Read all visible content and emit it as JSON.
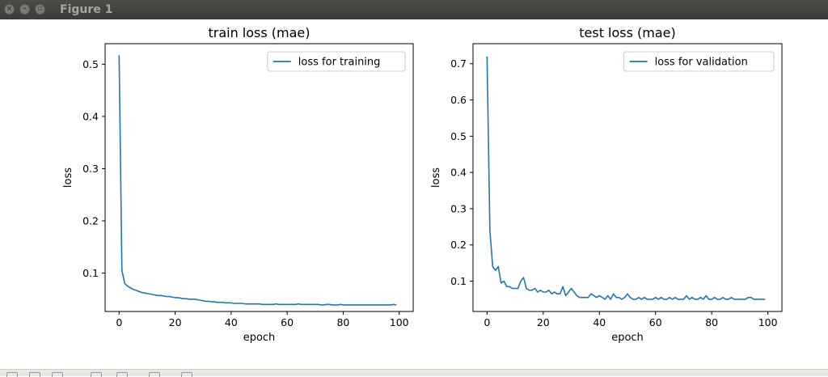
{
  "window": {
    "title": "Figure 1",
    "buttons": {
      "close": "close-icon",
      "minimize": "minimize-icon",
      "maximize": "maximize-icon"
    }
  },
  "toolbar": {
    "icons": [
      "home-icon",
      "back-icon",
      "forward-icon",
      "pan-icon",
      "zoom-icon",
      "configure-icon",
      "save-icon"
    ]
  },
  "colors": {
    "series": "#1f77b4",
    "axis": "#000000"
  },
  "chart_data": [
    {
      "type": "line",
      "title": "train loss (mae)",
      "xlabel": "epoch",
      "ylabel": "loss",
      "xlim": [
        -5,
        105
      ],
      "ylim": [
        0.0265,
        0.5393
      ],
      "xticks": [
        0,
        20,
        40,
        60,
        80,
        100
      ],
      "yticks": [
        0.1,
        0.2,
        0.3,
        0.4,
        0.5
      ],
      "legend": "top-right",
      "grid": false,
      "series": [
        {
          "name": "loss for training",
          "x": [
            0,
            1,
            2,
            3,
            4,
            5,
            6,
            7,
            8,
            9,
            10,
            11,
            12,
            13,
            14,
            15,
            16,
            17,
            18,
            19,
            20,
            21,
            22,
            23,
            24,
            25,
            26,
            27,
            28,
            29,
            30,
            31,
            32,
            33,
            34,
            35,
            36,
            37,
            38,
            39,
            40,
            41,
            42,
            43,
            44,
            45,
            46,
            47,
            48,
            49,
            50,
            51,
            52,
            53,
            54,
            55,
            56,
            57,
            58,
            59,
            60,
            61,
            62,
            63,
            64,
            65,
            66,
            67,
            68,
            69,
            70,
            71,
            72,
            73,
            74,
            75,
            76,
            77,
            78,
            79,
            80,
            81,
            82,
            83,
            84,
            85,
            86,
            87,
            88,
            89,
            90,
            91,
            92,
            93,
            94,
            95,
            96,
            97,
            98,
            99
          ],
          "y": [
            0.517,
            0.105,
            0.08,
            0.075,
            0.072,
            0.069,
            0.067,
            0.065,
            0.063,
            0.062,
            0.061,
            0.06,
            0.059,
            0.058,
            0.057,
            0.057,
            0.056,
            0.055,
            0.055,
            0.054,
            0.053,
            0.053,
            0.052,
            0.051,
            0.051,
            0.05,
            0.05,
            0.05,
            0.049,
            0.048,
            0.047,
            0.046,
            0.046,
            0.045,
            0.045,
            0.044,
            0.044,
            0.044,
            0.043,
            0.043,
            0.043,
            0.042,
            0.042,
            0.042,
            0.042,
            0.041,
            0.041,
            0.041,
            0.041,
            0.041,
            0.041,
            0.04,
            0.04,
            0.04,
            0.04,
            0.04,
            0.041,
            0.04,
            0.04,
            0.04,
            0.04,
            0.04,
            0.04,
            0.04,
            0.041,
            0.04,
            0.04,
            0.04,
            0.04,
            0.04,
            0.04,
            0.04,
            0.039,
            0.039,
            0.04,
            0.04,
            0.039,
            0.039,
            0.039,
            0.04,
            0.039,
            0.039,
            0.039,
            0.039,
            0.039,
            0.039,
            0.039,
            0.039,
            0.039,
            0.039,
            0.039,
            0.039,
            0.039,
            0.039,
            0.039,
            0.039,
            0.039,
            0.039,
            0.04,
            0.039
          ]
        }
      ]
    },
    {
      "type": "line",
      "title": "test loss (mae)",
      "xlabel": "epoch",
      "ylabel": "loss",
      "xlim": [
        -5,
        105
      ],
      "ylim": [
        0.0164,
        0.7552
      ],
      "xticks": [
        0,
        20,
        40,
        60,
        80,
        100
      ],
      "yticks": [
        0.1,
        0.2,
        0.3,
        0.4,
        0.5,
        0.6,
        0.7
      ],
      "legend": "top-right",
      "grid": false,
      "series": [
        {
          "name": "loss for validation",
          "x": [
            0,
            1,
            2,
            3,
            4,
            5,
            6,
            7,
            8,
            9,
            10,
            11,
            12,
            13,
            14,
            15,
            16,
            17,
            18,
            19,
            20,
            21,
            22,
            23,
            24,
            25,
            26,
            27,
            28,
            29,
            30,
            31,
            32,
            33,
            34,
            35,
            36,
            37,
            38,
            39,
            40,
            41,
            42,
            43,
            44,
            45,
            46,
            47,
            48,
            49,
            50,
            51,
            52,
            53,
            54,
            55,
            56,
            57,
            58,
            59,
            60,
            61,
            62,
            63,
            64,
            65,
            66,
            67,
            68,
            69,
            70,
            71,
            72,
            73,
            74,
            75,
            76,
            77,
            78,
            79,
            80,
            81,
            82,
            83,
            84,
            85,
            86,
            87,
            88,
            89,
            90,
            91,
            92,
            93,
            94,
            95,
            96,
            97,
            98,
            99
          ],
          "y": [
            0.72,
            0.24,
            0.14,
            0.13,
            0.14,
            0.095,
            0.1,
            0.085,
            0.085,
            0.08,
            0.08,
            0.08,
            0.1,
            0.11,
            0.08,
            0.075,
            0.075,
            0.08,
            0.07,
            0.075,
            0.07,
            0.07,
            0.075,
            0.065,
            0.07,
            0.065,
            0.065,
            0.085,
            0.06,
            0.07,
            0.08,
            0.07,
            0.06,
            0.055,
            0.055,
            0.055,
            0.055,
            0.065,
            0.06,
            0.055,
            0.06,
            0.055,
            0.05,
            0.06,
            0.05,
            0.065,
            0.055,
            0.055,
            0.05,
            0.055,
            0.065,
            0.055,
            0.05,
            0.05,
            0.055,
            0.05,
            0.055,
            0.05,
            0.05,
            0.05,
            0.055,
            0.05,
            0.055,
            0.05,
            0.05,
            0.055,
            0.05,
            0.055,
            0.05,
            0.05,
            0.05,
            0.06,
            0.05,
            0.055,
            0.05,
            0.05,
            0.055,
            0.05,
            0.06,
            0.05,
            0.05,
            0.055,
            0.05,
            0.05,
            0.055,
            0.05,
            0.05,
            0.055,
            0.05,
            0.05,
            0.05,
            0.05,
            0.05,
            0.055,
            0.055,
            0.05,
            0.05,
            0.05,
            0.05,
            0.05
          ]
        }
      ]
    }
  ]
}
